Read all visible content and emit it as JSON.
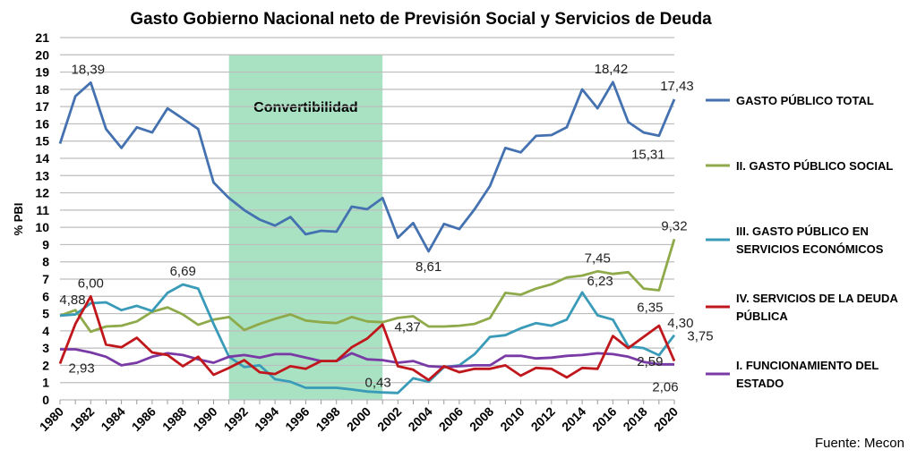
{
  "chart_data": {
    "type": "line",
    "title": "Gasto Gobierno Nacional neto de Previsión Social  y Servicios de Deuda",
    "ylabel": "% PBI",
    "xlabel": "",
    "ylim": [
      0,
      21
    ],
    "yticks": [
      0,
      1,
      2,
      3,
      4,
      5,
      6,
      7,
      8,
      9,
      10,
      11,
      12,
      13,
      14,
      15,
      16,
      17,
      18,
      19,
      20,
      21
    ],
    "xticks": [
      1980,
      1982,
      1984,
      1986,
      1988,
      1990,
      1992,
      1994,
      1996,
      1998,
      2000,
      2002,
      2004,
      2006,
      2008,
      2010,
      2012,
      2014,
      2016,
      2018,
      2020
    ],
    "grid": "horizontal",
    "legend_position": "right",
    "x": [
      1980,
      1981,
      1982,
      1983,
      1984,
      1985,
      1986,
      1987,
      1988,
      1989,
      1990,
      1991,
      1992,
      1993,
      1994,
      1995,
      1996,
      1997,
      1998,
      1999,
      2000,
      2001,
      2002,
      2003,
      2004,
      2005,
      2006,
      2007,
      2008,
      2009,
      2010,
      2011,
      2012,
      2013,
      2014,
      2015,
      2016,
      2017,
      2018,
      2019,
      2020
    ],
    "shaded_region": {
      "label": "Convertibilidad",
      "from": 1991,
      "to": 2001,
      "color": "#a8e2c2"
    },
    "series": [
      {
        "name": "GASTO PÚBLICO TOTAL",
        "color": "#4471b0",
        "values": [
          14.85,
          17.6,
          18.39,
          15.7,
          14.6,
          15.8,
          15.5,
          16.9,
          16.3,
          15.7,
          12.6,
          11.7,
          11.0,
          10.45,
          10.1,
          10.6,
          9.6,
          9.8,
          9.75,
          11.2,
          11.05,
          11.7,
          9.4,
          10.25,
          8.61,
          10.2,
          9.9,
          11.05,
          12.4,
          14.6,
          14.35,
          15.3,
          15.35,
          15.8,
          18.0,
          16.9,
          18.42,
          16.1,
          15.5,
          15.31,
          17.43
        ]
      },
      {
        "name": "II. GASTO PÚBLICO SOCIAL",
        "color": "#8faa4a",
        "values": [
          4.88,
          5.2,
          3.95,
          4.25,
          4.3,
          4.55,
          5.1,
          5.36,
          4.95,
          4.35,
          4.65,
          4.8,
          4.05,
          4.4,
          4.7,
          4.95,
          4.6,
          4.5,
          4.45,
          4.8,
          4.55,
          4.5,
          4.75,
          4.85,
          4.25,
          4.25,
          4.3,
          4.4,
          4.75,
          6.2,
          6.1,
          6.45,
          6.7,
          7.1,
          7.2,
          7.45,
          7.3,
          7.4,
          6.45,
          6.35,
          9.32
        ]
      },
      {
        "name": "III. GASTO PÚBLICO EN SERVICIOS ECONÓMICOS",
        "color": "#3a9bb8",
        "values": [
          4.88,
          4.95,
          5.6,
          5.65,
          5.2,
          5.45,
          5.15,
          6.2,
          6.69,
          6.45,
          4.4,
          2.5,
          1.9,
          2.0,
          1.2,
          1.05,
          0.7,
          0.7,
          0.7,
          0.6,
          0.48,
          0.43,
          0.4,
          1.25,
          1.05,
          1.9,
          2.0,
          2.65,
          3.65,
          3.75,
          4.15,
          4.45,
          4.3,
          4.65,
          6.23,
          4.9,
          4.65,
          3.1,
          3.0,
          2.59,
          3.75
        ]
      },
      {
        "name": "IV. SERVICIOS DE LA DEUDA PÚBLICA",
        "color": "#c0171c",
        "values": [
          2.1,
          4.4,
          6.0,
          3.2,
          3.05,
          3.6,
          2.75,
          2.6,
          1.95,
          2.5,
          1.45,
          1.85,
          2.3,
          1.6,
          1.5,
          1.95,
          1.8,
          2.25,
          2.25,
          3.05,
          3.55,
          4.37,
          1.95,
          1.75,
          1.15,
          1.95,
          1.6,
          1.8,
          1.8,
          2.0,
          1.4,
          1.85,
          1.8,
          1.3,
          1.85,
          1.8,
          3.7,
          3.0,
          3.65,
          4.3,
          2.25
        ]
      },
      {
        "name": "I. FUNCIONAMIENTO DEL ESTADO",
        "color": "#7a3aa6",
        "values": [
          2.93,
          2.93,
          2.75,
          2.5,
          2.0,
          2.15,
          2.5,
          2.7,
          2.6,
          2.35,
          2.15,
          2.5,
          2.6,
          2.45,
          2.65,
          2.65,
          2.45,
          2.25,
          2.25,
          2.7,
          2.35,
          2.3,
          2.15,
          2.25,
          1.95,
          1.9,
          1.95,
          2.0,
          2.0,
          2.55,
          2.55,
          2.4,
          2.45,
          2.55,
          2.6,
          2.7,
          2.65,
          2.5,
          2.2,
          2.06,
          2.06
        ]
      }
    ],
    "legend_lines": [
      [
        "GASTO PÚBLICO TOTAL"
      ],
      [
        "II. GASTO PÚBLICO SOCIAL"
      ],
      [
        "III. GASTO PÚBLICO EN",
        "SERVICIOS ECONÓMICOS"
      ],
      [
        "IV. SERVICIOS DE LA DEUDA",
        "PÚBLICA"
      ],
      [
        "I. FUNCIONAMIENTO DEL",
        "ESTADO"
      ]
    ],
    "data_labels": [
      {
        "series": 0,
        "year": 1982,
        "text": "18,39"
      },
      {
        "series": 0,
        "year": 2004,
        "text": "8,61"
      },
      {
        "series": 0,
        "year": 2016,
        "text": "18,42"
      },
      {
        "series": 0,
        "year": 2019,
        "text": "15,31"
      },
      {
        "series": 0,
        "year": 2020,
        "text": "17,43"
      },
      {
        "series": 1,
        "year": 1980,
        "text": "4,88"
      },
      {
        "series": 1,
        "year": 2015,
        "text": "7,45"
      },
      {
        "series": 1,
        "year": 2019,
        "text": "6,35"
      },
      {
        "series": 1,
        "year": 2020,
        "text": "9,32"
      },
      {
        "series": 2,
        "year": 1988,
        "text": "6,69"
      },
      {
        "series": 2,
        "year": 2001,
        "text": "0,43"
      },
      {
        "series": 2,
        "year": 2014,
        "text": "6,23"
      },
      {
        "series": 2,
        "year": 2019,
        "text": "2,59"
      },
      {
        "series": 2,
        "year": 2020,
        "text": "3,75"
      },
      {
        "series": 3,
        "year": 1982,
        "text": "6,00"
      },
      {
        "series": 3,
        "year": 2001,
        "text": "4,37"
      },
      {
        "series": 3,
        "year": 2019,
        "text": "4,30"
      },
      {
        "series": 4,
        "year": 1981,
        "text": "2,93"
      },
      {
        "series": 4,
        "year": 2020,
        "text": "2,06"
      }
    ],
    "source": "Fuente: Mecon"
  }
}
